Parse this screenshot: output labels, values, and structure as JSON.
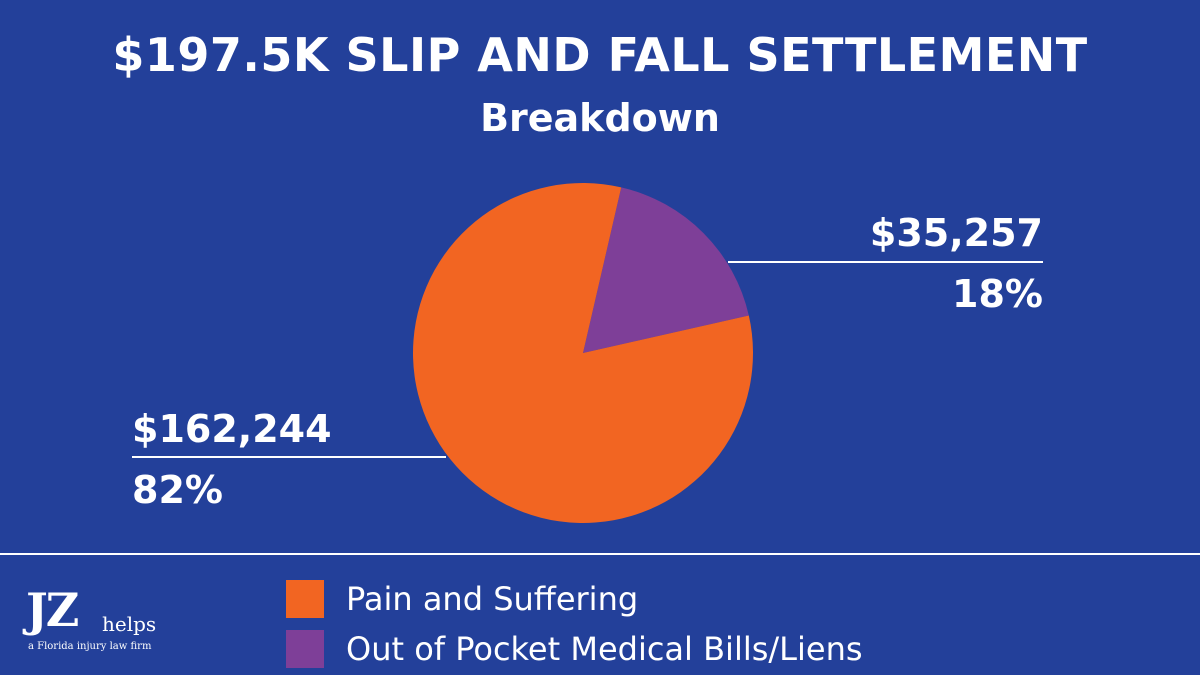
{
  "header": {
    "title": "$197.5K SLIP AND FALL SETTLEMENT",
    "subtitle": "Breakdown"
  },
  "chart_data": {
    "type": "pie",
    "title": "$197.5K SLIP AND FALL SETTLEMENT",
    "subtitle": "Breakdown",
    "slices": [
      {
        "name": "Pain and Suffering",
        "value": 162244,
        "amount_label": "$162,244",
        "percent": 82,
        "percent_label": "82%",
        "color": "#F26522"
      },
      {
        "name": "Out of Pocket Medical Bills/Liens",
        "value": 35257,
        "amount_label": "$35,257",
        "percent": 18,
        "percent_label": "18%",
        "color": "#7E3F98"
      }
    ],
    "legend_position": "bottom"
  },
  "legend": {
    "items": [
      {
        "label": "Pain and Suffering",
        "color": "#F26522"
      },
      {
        "label": "Out of Pocket Medical Bills/Liens",
        "color": "#7E3F98"
      }
    ]
  },
  "logo": {
    "mark": "JZ",
    "word": "helps",
    "tagline": "a Florida injury law firm"
  },
  "colors": {
    "background": "#23409A",
    "text": "#FFFFFF"
  }
}
